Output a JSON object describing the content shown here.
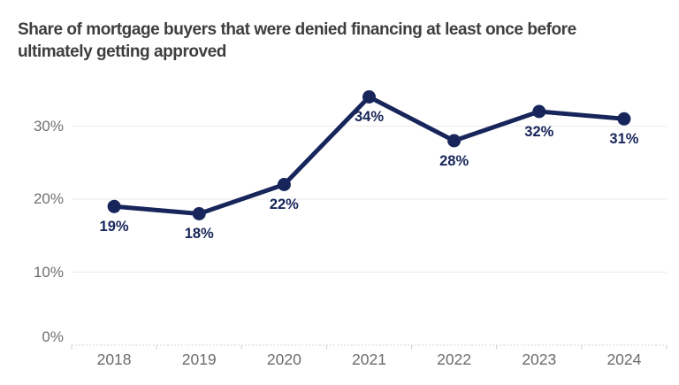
{
  "title": {
    "line1": "Share of mortgage buyers that were denied financing at least once before",
    "line2": "ultimately getting approved"
  },
  "chart_data": {
    "type": "line",
    "title": "Share of mortgage buyers that were denied financing at least once before ultimately getting approved",
    "categories": [
      "2018",
      "2019",
      "2020",
      "2021",
      "2022",
      "2023",
      "2024"
    ],
    "values": [
      19,
      18,
      22,
      34,
      28,
      32,
      31
    ],
    "data_labels": [
      "19%",
      "18%",
      "22%",
      "34%",
      "28%",
      "32%",
      "31%"
    ],
    "ytick_labels": [
      "30%",
      "20%",
      "10%",
      "0%"
    ],
    "ytick_values": [
      30,
      20,
      10,
      0
    ],
    "gridline_values": [
      10,
      20,
      30
    ],
    "ylim": [
      0,
      36
    ],
    "xlabel": "",
    "ylabel": "",
    "unit": "%",
    "grid": true,
    "legend": "none",
    "colors": {
      "line": "#17255A",
      "point": "#17255A",
      "data_label": "#17255A",
      "grid_line": "#EBEBEB",
      "axis_line": "#D4D4D4",
      "tick_mark": "#CFCFCF",
      "axis_text": "#6F6F6F",
      "title_text": "#3E3E3E",
      "background": "#FFFFFF"
    }
  }
}
